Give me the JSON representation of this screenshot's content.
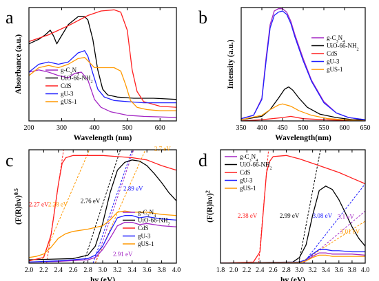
{
  "chart_data": [
    {
      "panel": "a",
      "type": "line",
      "xlabel": "Wavelength (nm)",
      "ylabel": "Absorbance (a.u.)",
      "xlim": [
        200,
        650
      ],
      "ylim": [
        0,
        1
      ],
      "xticks": [
        200,
        300,
        400,
        500,
        600
      ],
      "show_y_ticklabels": false,
      "legend": "bottom-left",
      "series": [
        {
          "name": "g-C3N4",
          "color": "#a326c4",
          "x": [
            200,
            230,
            260,
            290,
            320,
            340,
            360,
            380,
            400,
            420,
            450,
            500,
            550,
            600,
            650
          ],
          "y": [
            0.43,
            0.45,
            0.43,
            0.4,
            0.38,
            0.42,
            0.43,
            0.36,
            0.19,
            0.12,
            0.08,
            0.05,
            0.04,
            0.035,
            0.03
          ]
        },
        {
          "name": "UiO-66-NH2",
          "color": "#000000",
          "x": [
            200,
            230,
            250,
            265,
            275,
            285,
            295,
            320,
            350,
            370,
            380,
            395,
            410,
            425,
            440,
            470,
            520,
            580,
            650
          ],
          "y": [
            0.68,
            0.72,
            0.76,
            0.8,
            0.75,
            0.68,
            0.73,
            0.85,
            0.92,
            0.92,
            0.89,
            0.72,
            0.45,
            0.28,
            0.23,
            0.21,
            0.2,
            0.2,
            0.19
          ]
        },
        {
          "name": "CdS",
          "color": "#ff2020",
          "x": [
            200,
            260,
            320,
            380,
            420,
            460,
            480,
            500,
            515,
            530,
            550,
            600,
            650
          ],
          "y": [
            0.7,
            0.76,
            0.84,
            0.93,
            0.97,
            0.98,
            0.96,
            0.8,
            0.45,
            0.26,
            0.17,
            0.13,
            0.12
          ]
        },
        {
          "name": "gU-3",
          "color": "#2020ff",
          "x": [
            200,
            230,
            260,
            290,
            320,
            350,
            370,
            380,
            395,
            410,
            430,
            460,
            500,
            550,
            600,
            650
          ],
          "y": [
            0.43,
            0.5,
            0.52,
            0.5,
            0.52,
            0.6,
            0.62,
            0.57,
            0.42,
            0.28,
            0.21,
            0.18,
            0.17,
            0.16,
            0.16,
            0.16
          ]
        },
        {
          "name": "gUS-1",
          "color": "#ff9900",
          "x": [
            200,
            230,
            260,
            290,
            320,
            350,
            370,
            380,
            400,
            430,
            460,
            480,
            495,
            510,
            530,
            560,
            600,
            650
          ],
          "y": [
            0.4,
            0.47,
            0.49,
            0.47,
            0.5,
            0.55,
            0.56,
            0.53,
            0.47,
            0.47,
            0.47,
            0.44,
            0.32,
            0.18,
            0.12,
            0.1,
            0.09,
            0.09
          ]
        }
      ]
    },
    {
      "panel": "b",
      "type": "line",
      "xlabel": "Wavelength(nm)",
      "ylabel": "Intensity (a.u.)",
      "xlim": [
        350,
        650
      ],
      "ylim": [
        0,
        1
      ],
      "xticks": [
        350,
        400,
        450,
        500,
        550,
        600,
        650
      ],
      "show_y_ticklabels": false,
      "legend": "top-right",
      "series": [
        {
          "name": "g-C3N4",
          "color": "#a326c4",
          "x": [
            350,
            380,
            400,
            410,
            420,
            430,
            440,
            450,
            460,
            470,
            480,
            500,
            520,
            550,
            580,
            610,
            650
          ],
          "y": [
            0.02,
            0.05,
            0.2,
            0.55,
            0.85,
            0.97,
            0.99,
            0.99,
            0.96,
            0.88,
            0.76,
            0.55,
            0.36,
            0.17,
            0.07,
            0.03,
            0.01
          ]
        },
        {
          "name": "UiO-66-NH2",
          "color": "#000000",
          "x": [
            350,
            400,
            420,
            440,
            455,
            465,
            475,
            490,
            510,
            540,
            580,
            620,
            650
          ],
          "y": [
            0.01,
            0.04,
            0.1,
            0.2,
            0.28,
            0.3,
            0.27,
            0.2,
            0.12,
            0.06,
            0.03,
            0.01,
            0.01
          ]
        },
        {
          "name": "CdS",
          "color": "#ff2020",
          "x": [
            350,
            400,
            450,
            470,
            500,
            550,
            650
          ],
          "y": [
            0.0,
            0.01,
            0.03,
            0.04,
            0.02,
            0.01,
            0.0
          ]
        },
        {
          "name": "gU-3",
          "color": "#2020ff",
          "x": [
            350,
            380,
            400,
            410,
            420,
            430,
            440,
            450,
            460,
            470,
            480,
            500,
            520,
            550,
            580,
            610,
            650
          ],
          "y": [
            0.02,
            0.05,
            0.19,
            0.52,
            0.82,
            0.93,
            0.96,
            0.97,
            0.94,
            0.86,
            0.74,
            0.53,
            0.35,
            0.16,
            0.07,
            0.03,
            0.01
          ]
        },
        {
          "name": "gUS-1",
          "color": "#ff9900",
          "x": [
            350,
            400,
            420,
            440,
            450,
            470,
            490,
            520,
            560,
            600,
            650
          ],
          "y": [
            0.01,
            0.05,
            0.1,
            0.14,
            0.15,
            0.13,
            0.09,
            0.05,
            0.02,
            0.01,
            0.0
          ]
        }
      ]
    },
    {
      "panel": "c",
      "type": "line",
      "xlabel": "hv (eV)",
      "ylabel": "(F(R)hv)0.5",
      "xlim": [
        2.0,
        4.0
      ],
      "ylim": [
        0,
        1
      ],
      "xticks": [
        2.0,
        2.2,
        2.4,
        2.6,
        2.8,
        3.0,
        3.2,
        3.4,
        3.6,
        3.8,
        4.0
      ],
      "show_y_ticklabels": false,
      "legend": "bottom-right",
      "series": [
        {
          "name": "g-C3N4",
          "color": "#a326c4",
          "x": [
            2.0,
            2.4,
            2.8,
            2.9,
            3.0,
            3.1,
            3.2,
            3.3,
            3.4,
            3.5,
            3.6,
            3.8,
            4.0
          ],
          "y": [
            0.01,
            0.015,
            0.03,
            0.05,
            0.12,
            0.22,
            0.33,
            0.36,
            0.36,
            0.34,
            0.35,
            0.33,
            0.32
          ]
        },
        {
          "name": "UiO-66-NH2",
          "color": "#000000",
          "x": [
            2.0,
            2.6,
            2.8,
            2.9,
            3.0,
            3.1,
            3.2,
            3.3,
            3.4,
            3.5,
            3.6,
            3.7,
            3.8,
            3.9,
            4.0
          ],
          "y": [
            0.03,
            0.04,
            0.07,
            0.15,
            0.35,
            0.62,
            0.82,
            0.89,
            0.91,
            0.9,
            0.86,
            0.79,
            0.71,
            0.62,
            0.55
          ]
        },
        {
          "name": "CdS",
          "color": "#ff2020",
          "x": [
            2.0,
            2.2,
            2.3,
            2.4,
            2.45,
            2.5,
            2.6,
            2.8,
            3.0,
            3.2,
            3.4,
            3.6,
            3.8,
            4.0
          ],
          "y": [
            0.02,
            0.05,
            0.25,
            0.7,
            0.88,
            0.93,
            0.95,
            0.95,
            0.95,
            0.94,
            0.93,
            0.91,
            0.86,
            0.82
          ]
        },
        {
          "name": "gU-3",
          "color": "#2020ff",
          "x": [
            2.0,
            2.4,
            2.8,
            2.9,
            3.0,
            3.1,
            3.2,
            3.3,
            3.4,
            3.5,
            3.6,
            3.8,
            4.0
          ],
          "y": [
            0.01,
            0.02,
            0.04,
            0.07,
            0.15,
            0.28,
            0.4,
            0.42,
            0.42,
            0.4,
            0.41,
            0.39,
            0.38
          ]
        },
        {
          "name": "gUS-1",
          "color": "#ff9900",
          "x": [
            2.0,
            2.1,
            2.2,
            2.3,
            2.4,
            2.5,
            2.6,
            2.8,
            3.0,
            3.1,
            3.2,
            3.3,
            3.4,
            3.6,
            3.8,
            4.0
          ],
          "y": [
            0.05,
            0.06,
            0.08,
            0.14,
            0.22,
            0.26,
            0.28,
            0.3,
            0.33,
            0.38,
            0.45,
            0.46,
            0.45,
            0.45,
            0.43,
            0.42
          ]
        }
      ],
      "tangents": [
        {
          "color": "#ff2020",
          "x": [
            2.24,
            2.47
          ],
          "y": [
            0.0,
            1.0
          ]
        },
        {
          "color": "#ff9900",
          "x": [
            2.16,
            2.82
          ],
          "y": [
            0.0,
            1.0
          ]
        },
        {
          "color": "#000000",
          "x": [
            2.74,
            3.24
          ],
          "y": [
            0.0,
            1.0
          ]
        },
        {
          "color": "#a326c4",
          "x": [
            2.9,
            3.42
          ],
          "y": [
            0.0,
            1.0
          ]
        },
        {
          "color": "#2020ff",
          "x": [
            2.87,
            3.4
          ],
          "y": [
            0.0,
            1.0
          ]
        },
        {
          "color": "#ff9900",
          "x": [
            2.9,
            3.58
          ],
          "y": [
            0.0,
            1.0
          ]
        }
      ],
      "annotations": [
        {
          "text": "2.27 eV",
          "color": "#ff2020",
          "x": 2.0,
          "y": 0.5
        },
        {
          "text": "2.28 eV",
          "color": "#ff9900",
          "x": 2.26,
          "y": 0.5
        },
        {
          "text": "2.76 eV",
          "color": "#000000",
          "x": 2.7,
          "y": 0.53
        },
        {
          "text": "2.89 eV",
          "color": "#2020ff",
          "x": 3.28,
          "y": 0.64
        },
        {
          "text": "2.7 eV",
          "color": "#ff9900",
          "x": 3.7,
          "y": 0.99
        },
        {
          "text": "2.91 eV",
          "color": "#a326c4",
          "x": 3.14,
          "y": 0.06
        }
      ]
    },
    {
      "panel": "d",
      "type": "line",
      "xlabel": "hv (eV)",
      "ylabel": "(F(R)hv)2",
      "xlim": [
        1.8,
        4.0
      ],
      "ylim": [
        0,
        1
      ],
      "xticks": [
        1.8,
        2.0,
        2.2,
        2.4,
        2.6,
        2.8,
        3.0,
        3.2,
        3.4,
        3.6,
        3.8,
        4.0
      ],
      "show_y_ticklabels": false,
      "legend": "top-left",
      "series": [
        {
          "name": "g-C3N4",
          "color": "#a326c4",
          "x": [
            1.8,
            3.0,
            3.1,
            3.2,
            3.3,
            3.4,
            3.5,
            3.6,
            3.8,
            4.0
          ],
          "y": [
            0.0,
            0.005,
            0.02,
            0.06,
            0.09,
            0.09,
            0.08,
            0.08,
            0.08,
            0.07
          ]
        },
        {
          "name": "UiO-66-NH2",
          "color": "#000000",
          "x": [
            1.8,
            2.9,
            3.0,
            3.1,
            3.2,
            3.3,
            3.4,
            3.5,
            3.6,
            3.7,
            3.8,
            3.9,
            4.0
          ],
          "y": [
            0.0,
            0.01,
            0.05,
            0.16,
            0.42,
            0.64,
            0.68,
            0.65,
            0.56,
            0.44,
            0.32,
            0.22,
            0.15
          ]
        },
        {
          "name": "CdS",
          "color": "#ff2020",
          "x": [
            1.8,
            2.3,
            2.4,
            2.45,
            2.5,
            2.55,
            2.6,
            2.8,
            3.0,
            3.2,
            3.4,
            3.6,
            3.8,
            4.0
          ],
          "y": [
            0.0,
            0.01,
            0.1,
            0.45,
            0.8,
            0.9,
            0.94,
            0.95,
            0.92,
            0.88,
            0.84,
            0.8,
            0.75,
            0.7
          ]
        },
        {
          "name": "gU-3",
          "color": "#2020ff",
          "x": [
            1.8,
            3.0,
            3.1,
            3.2,
            3.3,
            3.4,
            3.5,
            3.6,
            3.8,
            4.0
          ],
          "y": [
            0.0,
            0.01,
            0.03,
            0.08,
            0.12,
            0.12,
            0.11,
            0.11,
            0.1,
            0.1
          ]
        },
        {
          "name": "gUS-1",
          "color": "#ff9900",
          "x": [
            1.8,
            3.0,
            3.1,
            3.2,
            3.3,
            3.4,
            3.5,
            3.6,
            3.8,
            4.0
          ],
          "y": [
            0.0,
            0.005,
            0.02,
            0.05,
            0.07,
            0.07,
            0.06,
            0.06,
            0.06,
            0.06
          ]
        }
      ],
      "tangents": [
        {
          "color": "#ff2020",
          "x": [
            2.38,
            2.53
          ],
          "y": [
            0.0,
            1.0
          ]
        },
        {
          "color": "#000000",
          "x": [
            2.99,
            3.32
          ],
          "y": [
            0.0,
            1.0
          ]
        },
        {
          "color": "#2020ff",
          "x": [
            3.06,
            4.0
          ],
          "y": [
            0.0,
            0.7
          ]
        },
        {
          "color": "#a326c4",
          "x": [
            3.06,
            4.0
          ],
          "y": [
            0.0,
            0.46
          ]
        },
        {
          "color": "#ff9900",
          "x": [
            3.0,
            4.0
          ],
          "y": [
            0.0,
            0.37
          ]
        }
      ],
      "annotations": [
        {
          "text": "2.38 eV",
          "color": "#ff2020",
          "x": 2.06,
          "y": 0.4
        },
        {
          "text": "2.99 eV",
          "color": "#000000",
          "x": 2.7,
          "y": 0.4
        },
        {
          "text": "3.08 eV",
          "color": "#2020ff",
          "x": 3.2,
          "y": 0.4
        },
        {
          "text": "3.1 eV",
          "color": "#a326c4",
          "x": 3.58,
          "y": 0.39
        },
        {
          "text": "3.01 eV",
          "color": "#ff9900",
          "x": 3.62,
          "y": 0.26
        }
      ]
    }
  ]
}
